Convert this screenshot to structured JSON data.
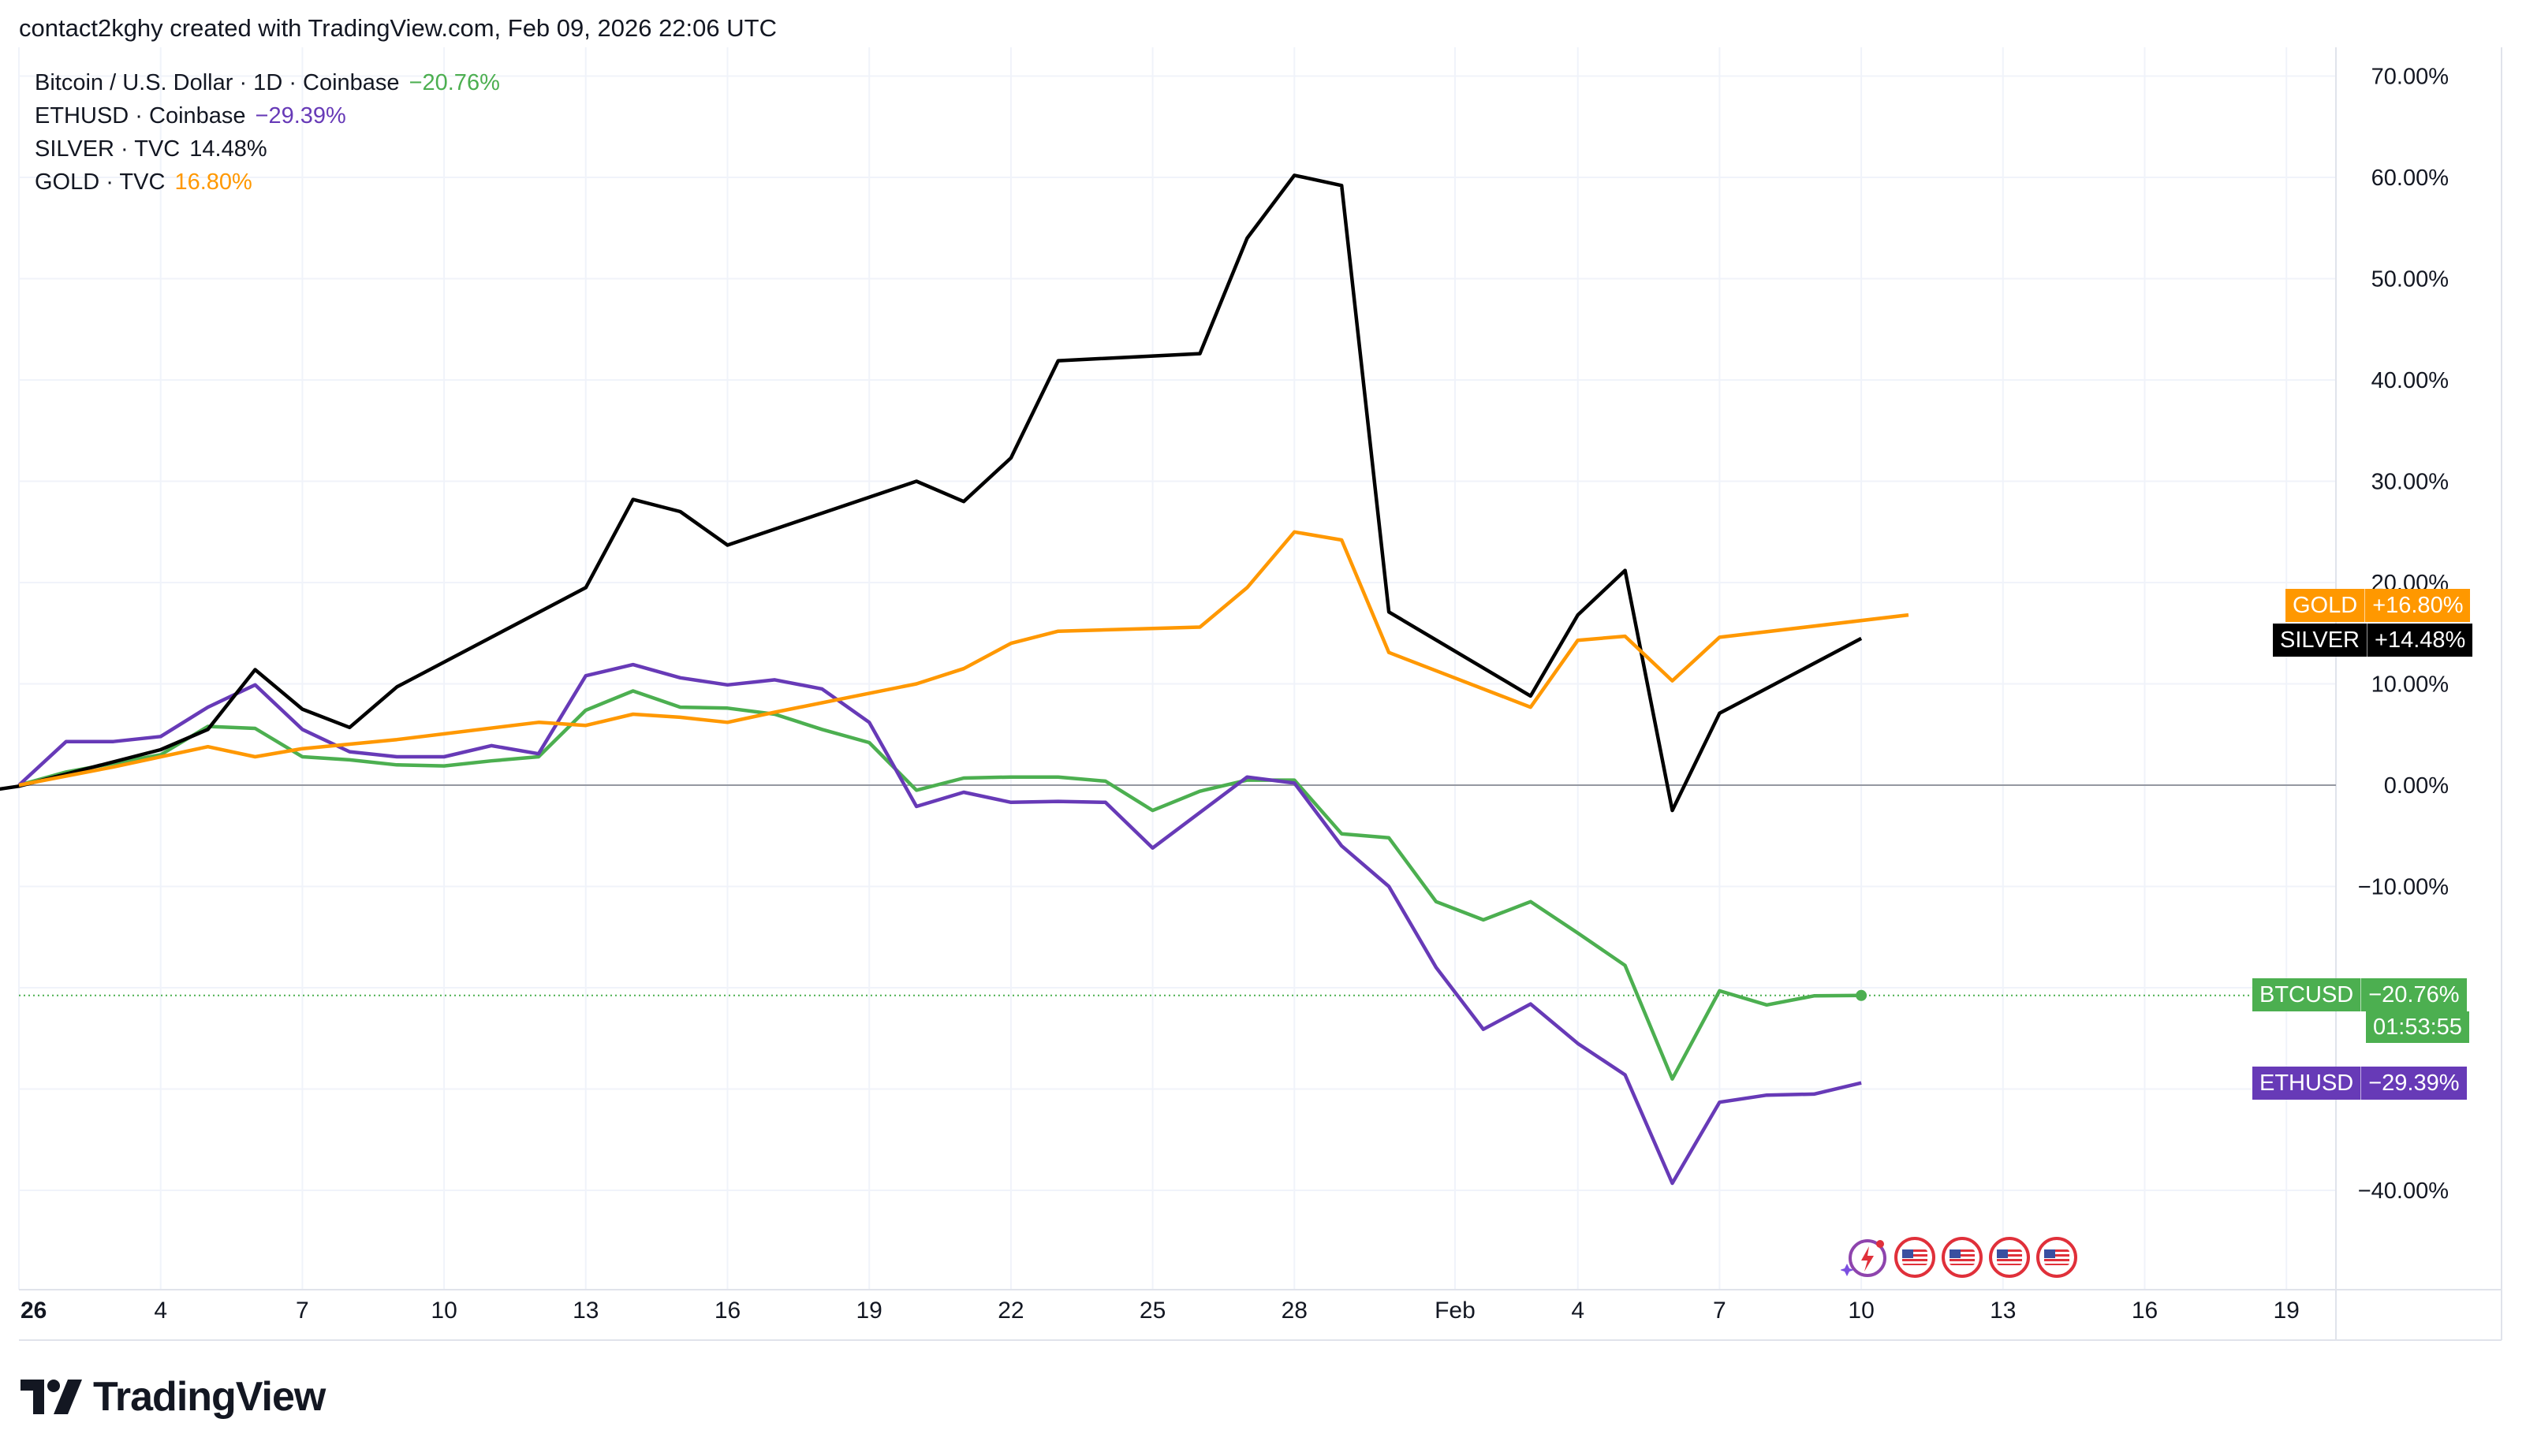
{
  "header": {
    "title": "contact2kghy created with TradingView.com, Feb 09, 2026 22:06 UTC"
  },
  "legend": [
    {
      "name": "Bitcoin / U.S. Dollar · 1D · Coinbase",
      "value": "−20.76%",
      "color": "#4caf50"
    },
    {
      "name": "ETHUSD · Coinbase",
      "value": "−29.39%",
      "color": "#673ab7"
    },
    {
      "name": "SILVER · TVC",
      "value": "14.48%",
      "color": "#131722"
    },
    {
      "name": "GOLD · TVC",
      "value": "16.80%",
      "color": "#ff9800"
    }
  ],
  "price_tags": {
    "gold": {
      "name": "GOLD",
      "value": "+16.80%",
      "color": "#ff9800"
    },
    "silver": {
      "name": "SILVER",
      "value": "+14.48%",
      "color": "#000000"
    },
    "btc": {
      "name": "BTCUSD",
      "value": "−20.76%",
      "countdown": "01:53:55",
      "color": "#4caf50"
    },
    "eth": {
      "name": "ETHUSD",
      "value": "−29.39%",
      "color": "#673ab7"
    }
  },
  "branding": {
    "logo_text": "TradingView"
  },
  "icons": {
    "events": [
      "lightning-icon",
      "us-flag-event-icon",
      "us-flag-event-icon",
      "us-flag-event-icon",
      "us-flag-event-icon"
    ]
  },
  "chart_data": {
    "type": "line",
    "x_ticks": [
      "26",
      "4",
      "7",
      "10",
      "13",
      "16",
      "19",
      "22",
      "25",
      "28",
      "Feb",
      "4",
      "7",
      "10",
      "13",
      "16",
      "19"
    ],
    "y_ticks": [
      "70.00%",
      "60.00%",
      "50.00%",
      "40.00%",
      "30.00%",
      "20.00%",
      "10.00%",
      "0.00%",
      "−10.00%",
      "−40.00%"
    ],
    "y_tick_values": [
      70,
      60,
      50,
      40,
      30,
      20,
      10,
      0,
      -10,
      -40
    ],
    "ylim": [
      -51,
      76
    ],
    "xlim": [
      0,
      50
    ],
    "grid": true,
    "legend_position": "top-left",
    "series": [
      {
        "name": "Bitcoin / U.S. Dollar · 1D · Coinbase",
        "color": "#4caf50",
        "points": [
          [
            0,
            0
          ],
          [
            1,
            1.3
          ],
          [
            3,
            3.0
          ],
          [
            4,
            5.8
          ],
          [
            5,
            5.6
          ],
          [
            6,
            2.8
          ],
          [
            7,
            2.5
          ],
          [
            8,
            2.0
          ],
          [
            9,
            1.9
          ],
          [
            10,
            2.4
          ],
          [
            11,
            2.8
          ],
          [
            12,
            7.4
          ],
          [
            13,
            9.3
          ],
          [
            14,
            7.7
          ],
          [
            15,
            7.6
          ],
          [
            16,
            7.0
          ],
          [
            17,
            5.5
          ],
          [
            18,
            4.2
          ],
          [
            19,
            -0.5
          ],
          [
            20,
            0.7
          ],
          [
            21,
            0.8
          ],
          [
            22,
            0.8
          ],
          [
            23,
            0.4
          ],
          [
            24,
            -2.5
          ],
          [
            25,
            -0.6
          ],
          [
            26,
            0.5
          ],
          [
            27,
            0.5
          ],
          [
            28,
            -4.8
          ],
          [
            29,
            -5.2
          ],
          [
            30,
            -11.5
          ],
          [
            31,
            -13.3
          ],
          [
            32,
            -11.5
          ],
          [
            33,
            -14.6
          ],
          [
            34,
            -17.8
          ],
          [
            35,
            -29.0
          ],
          [
            36,
            -20.3
          ],
          [
            37,
            -21.7
          ],
          [
            38,
            -20.8
          ],
          [
            39,
            -20.76
          ]
        ]
      },
      {
        "name": "ETHUSD · Coinbase",
        "color": "#673ab7",
        "points": [
          [
            0,
            0
          ],
          [
            1,
            4.3
          ],
          [
            2,
            4.3
          ],
          [
            3,
            4.8
          ],
          [
            4,
            7.7
          ],
          [
            5,
            9.9
          ],
          [
            6,
            5.5
          ],
          [
            7,
            3.3
          ],
          [
            8,
            2.8
          ],
          [
            9,
            2.8
          ],
          [
            10,
            3.9
          ],
          [
            11,
            3.1
          ],
          [
            12,
            10.8
          ],
          [
            13,
            11.9
          ],
          [
            14,
            10.6
          ],
          [
            15,
            9.9
          ],
          [
            16,
            10.4
          ],
          [
            17,
            9.5
          ],
          [
            18,
            6.2
          ],
          [
            19,
            -2.1
          ],
          [
            20,
            -0.7
          ],
          [
            21,
            -1.7
          ],
          [
            22,
            -1.6
          ],
          [
            23,
            -1.7
          ],
          [
            24,
            -6.2
          ],
          [
            25,
            -2.7
          ],
          [
            26,
            0.8
          ],
          [
            27,
            0.2
          ],
          [
            28,
            -6.0
          ],
          [
            29,
            -10.0
          ],
          [
            30,
            -18.0
          ],
          [
            31,
            -24.1
          ],
          [
            32,
            -21.6
          ],
          [
            33,
            -25.5
          ],
          [
            34,
            -28.6
          ],
          [
            35,
            -39.3
          ],
          [
            36,
            -31.3
          ],
          [
            37,
            -30.6
          ],
          [
            38,
            -30.5
          ],
          [
            39,
            -29.39
          ]
        ]
      },
      {
        "name": "SILVER · TVC",
        "color": "#000000",
        "points": [
          [
            -1,
            -0.8
          ],
          [
            0,
            -0.1
          ],
          [
            3,
            3.5
          ],
          [
            4,
            5.5
          ],
          [
            5,
            11.4
          ],
          [
            6,
            7.5
          ],
          [
            7,
            5.7
          ],
          [
            8,
            9.7
          ],
          [
            12,
            19.5
          ],
          [
            13,
            28.2
          ],
          [
            14,
            27.0
          ],
          [
            15,
            23.7
          ],
          [
            19,
            30.0
          ],
          [
            20,
            28.0
          ],
          [
            21,
            32.3
          ],
          [
            22,
            41.9
          ],
          [
            25,
            42.6
          ],
          [
            26,
            54.0
          ],
          [
            27,
            60.2
          ],
          [
            28,
            59.2
          ],
          [
            29,
            17.1
          ],
          [
            32,
            8.8
          ],
          [
            33,
            16.8
          ],
          [
            34,
            21.2
          ],
          [
            35,
            -2.5
          ],
          [
            36,
            7.1
          ],
          [
            39,
            14.48
          ]
        ]
      },
      {
        "name": "GOLD · TVC",
        "color": "#ff9800",
        "points": [
          [
            0,
            0
          ],
          [
            2,
            1.8
          ],
          [
            4,
            3.8
          ],
          [
            5,
            2.8
          ],
          [
            6,
            3.6
          ],
          [
            8,
            4.5
          ],
          [
            11,
            6.2
          ],
          [
            12,
            5.9
          ],
          [
            13,
            7.0
          ],
          [
            14,
            6.7
          ],
          [
            15,
            6.2
          ],
          [
            16,
            7.2
          ],
          [
            19,
            10.0
          ],
          [
            20,
            11.5
          ],
          [
            21,
            14.0
          ],
          [
            22,
            15.2
          ],
          [
            25,
            15.6
          ],
          [
            26,
            19.5
          ],
          [
            27,
            25.0
          ],
          [
            28,
            24.2
          ],
          [
            29,
            13.1
          ],
          [
            32,
            7.7
          ],
          [
            33,
            14.3
          ],
          [
            34,
            14.7
          ],
          [
            35,
            10.3
          ],
          [
            36,
            14.6
          ],
          [
            40,
            16.8
          ]
        ]
      }
    ]
  }
}
